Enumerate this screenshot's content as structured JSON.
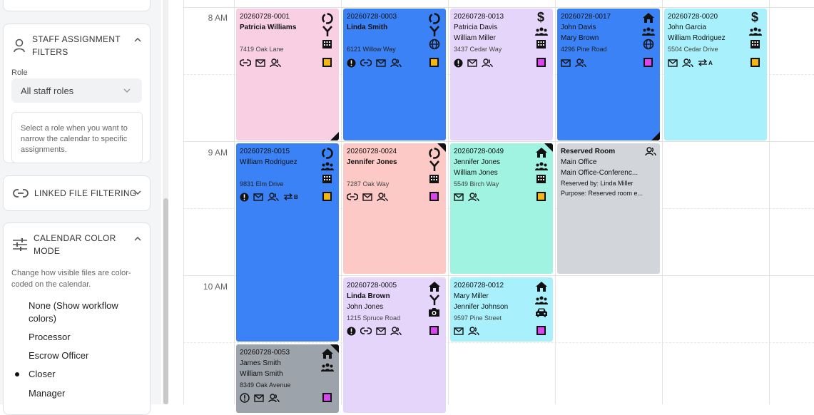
{
  "sidebar": {
    "staff_panel": {
      "title_line1": "STAFF ASSIGNMENT",
      "title_line2": "FILTERS",
      "role_label": "Role",
      "role_value": "All staff roles",
      "help_line1": "Select a role when you want to",
      "help_line2": "narrow the calendar to specific",
      "help_line3": "assignments."
    },
    "linked_panel": {
      "title": "LINKED FILE FILTERING"
    },
    "color_panel": {
      "title_line1": "CALENDAR COLOR",
      "title_line2": "MODE",
      "desc_line1": "Change how visible files are color-",
      "desc_line2": "coded on the calendar.",
      "options": [
        {
          "label_line1": "None (Show workflow",
          "label_line2": "colors)"
        },
        {
          "label_line1": "Processor"
        },
        {
          "label_line1": "Escrow Officer"
        },
        {
          "label_line1": "Closer",
          "selected": true
        },
        {
          "label_line1": "Manager"
        }
      ]
    }
  },
  "calendar": {
    "hours": [
      "8 AM",
      "9 AM",
      "10 AM"
    ],
    "colors": {
      "pink": "#f9cfe4",
      "blue": "#3b82f6",
      "lavender": "#e6d5fb",
      "cyan": "#a8f0fb",
      "salmon": "#fcc9c6",
      "mint": "#9ff3e0",
      "gray": "#d2d5da",
      "darkgray": "#9ca3ab",
      "orange_sq": "#f4b70f",
      "magenta_sq": "#d946ef"
    },
    "cards": [
      {
        "id": "20260728-0001",
        "line2": "Patricia Williams",
        "line3": "",
        "addr": "7419 Oak Lane",
        "bold2": true
      },
      {
        "id": "20260728-0003",
        "line2": "Linda Smith",
        "line3": "",
        "addr": "6121 Willow Way",
        "bold2": true
      },
      {
        "id": "20260728-0013",
        "line2": "Patricia Davis",
        "line3": "William Miller",
        "addr": "3437 Cedar Way"
      },
      {
        "id": "20260728-0017",
        "line2": "John Davis",
        "line3": "Mary Brown",
        "addr": "4296 Pine Road"
      },
      {
        "id": "20260728-0020",
        "line2": "John Garcia",
        "line3": "William Rodriguez",
        "addr": "5504 Cedar Drive",
        "swap_tag": "A"
      },
      {
        "id": "20260728-0015",
        "line2": "William Rodriguez",
        "line3": "",
        "addr": "9831 Elm Drive",
        "swap_tag": "B"
      },
      {
        "id": "20260728-0024",
        "line2": "Jennifer Jones",
        "line3": "",
        "addr": "7287 Oak Way",
        "bold2": true
      },
      {
        "id": "20260728-0049",
        "line2": "Jennifer Jones",
        "line3": "William Jones",
        "addr": "5549 Birch Way"
      },
      {
        "id": "20260728-0005",
        "line2": "Linda Brown",
        "line3": "John Jones",
        "addr": "1215 Spruce Road",
        "bold2": true
      },
      {
        "id": "20260728-0012",
        "line2": "Mary Miller",
        "line3": "Jennifer Johnson",
        "addr": "9597 Pine Street"
      },
      {
        "id": "20260728-0053",
        "line2": "James Smith",
        "line3": "William Smith",
        "addr": "8349 Oak Avenue"
      }
    ],
    "reserved": {
      "title": "Reserved Room",
      "office": "Main Office",
      "room": "Main Office-Conferenc...",
      "by": "Reserved by: Linda Miller",
      "purpose": "Purpose: Reserved room e..."
    }
  }
}
